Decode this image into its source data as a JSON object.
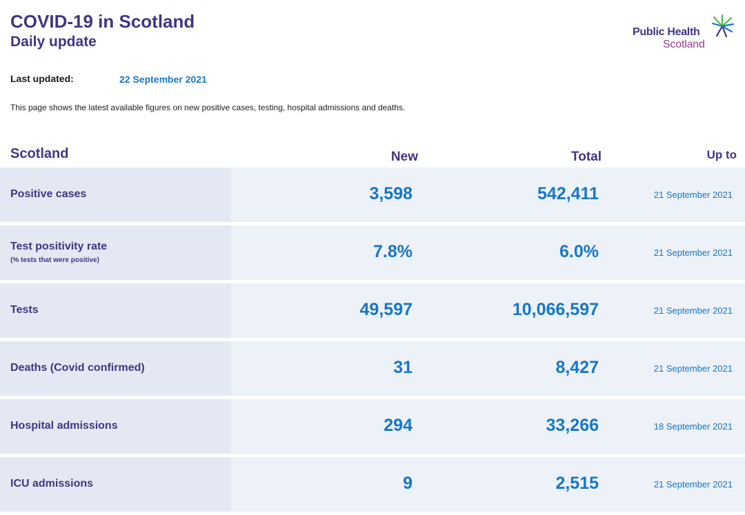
{
  "header": {
    "title": "COVID-19 in Scotland",
    "subtitle": "Daily update"
  },
  "logo": {
    "line1": "Public Health",
    "line2": "Scotland",
    "icon": "star-burst-icon",
    "colors": {
      "primary": "#3f3685",
      "secondary": "#9b3c8f",
      "accent_green": "#4cb848",
      "accent_blue": "#1677c8"
    }
  },
  "updated": {
    "label": "Last updated:",
    "value": "22 September 2021"
  },
  "intro": "This page shows the latest available figures on new positive cases, testing, hospital admissions and deaths.",
  "table": {
    "headers": {
      "region": "Scotland",
      "new": "New",
      "total": "Total",
      "up_to": "Up to"
    },
    "rows": [
      {
        "label": "Positive cases",
        "sublabel": "",
        "new": "3,598",
        "total": "542,411",
        "up_to": "21 September 2021"
      },
      {
        "label": "Test positivity rate",
        "sublabel": "(% tests that were positive)",
        "new": "7.8%",
        "total": "6.0%",
        "up_to": "21 September 2021"
      },
      {
        "label": "Tests",
        "sublabel": "",
        "new": "49,597",
        "total": "10,066,597",
        "up_to": "21 September 2021"
      },
      {
        "label": "Deaths (Covid confirmed)",
        "sublabel": "",
        "new": "31",
        "total": "8,427",
        "up_to": "21 September 2021"
      },
      {
        "label": "Hospital admissions",
        "sublabel": "",
        "new": "294",
        "total": "33,266",
        "up_to": "18 September 2021"
      },
      {
        "label": "ICU admissions",
        "sublabel": "",
        "new": "9",
        "total": "2,515",
        "up_to": "21 September 2021"
      }
    ]
  },
  "colors": {
    "heading": "#3f3685",
    "value": "#1677c8",
    "row_bg": "#edf1f8",
    "label_bg": "#e4e8f2"
  }
}
